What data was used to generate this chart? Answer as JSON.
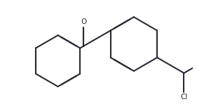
{
  "bg_color": "#ffffff",
  "line_color": "#2a2a35",
  "line_width": 1.5,
  "dbo": 0.018,
  "text_color": "#2a2a35",
  "font_size": 7.5,
  "figsize": [
    2.81,
    1.55
  ],
  "dpi": 100
}
